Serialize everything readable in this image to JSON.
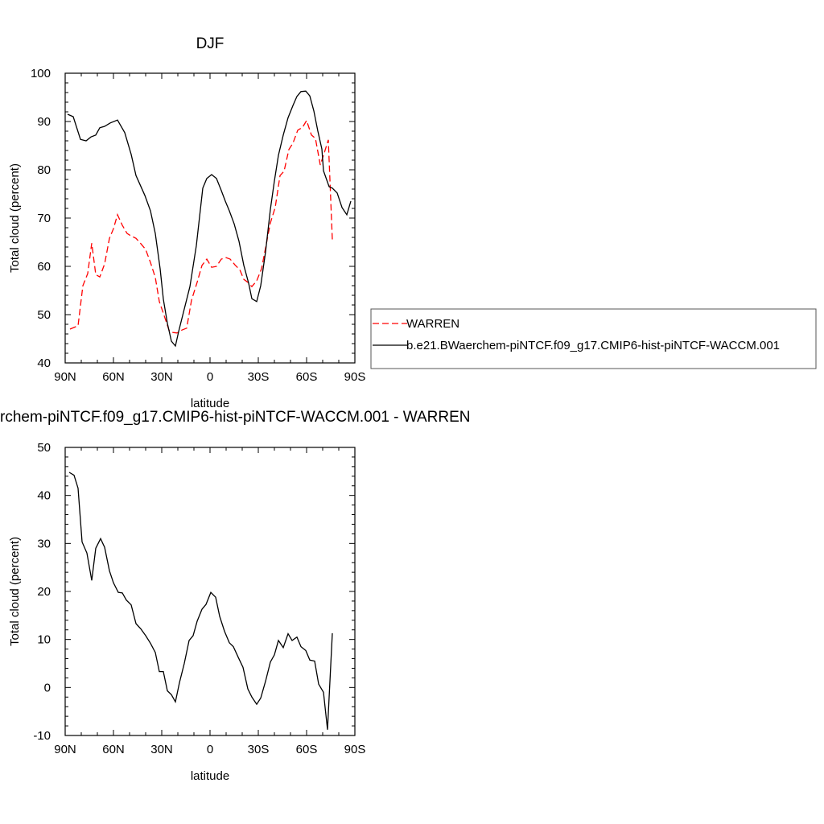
{
  "chart_data": [
    {
      "type": "line",
      "title": "DJF",
      "x_label": "latitude",
      "y_label": "Total cloud (percent)",
      "xlim": [
        90,
        -90
      ],
      "xticks": [
        {
          "value": 90,
          "label": "90N"
        },
        {
          "value": 60,
          "label": "60N"
        },
        {
          "value": 30,
          "label": "30N"
        },
        0,
        {
          "value": -30,
          "label": "30S"
        },
        {
          "value": -60,
          "label": "60S"
        },
        {
          "value": -90,
          "label": "90S"
        }
      ],
      "ylim": [
        40,
        100
      ],
      "yticks": [
        40,
        50,
        60,
        70,
        80,
        90,
        100
      ],
      "legend": "right",
      "series": [
        {
          "name": "WARREN",
          "color": "#ff0000",
          "dashed": true,
          "x": [
            87,
            82,
            79,
            76,
            73.5,
            71,
            68.5,
            65.5,
            62.5,
            60,
            57.5,
            54.5,
            51.5,
            49,
            46,
            43,
            40,
            37,
            34,
            31.5,
            28.5,
            25.5,
            23,
            20.5,
            17.5,
            14.5,
            11.5,
            8,
            5,
            2,
            -1,
            -4,
            -7,
            -10,
            -12.5,
            -15.5,
            -18.5,
            -21,
            -23.5,
            -26,
            -29,
            -32,
            -34.5,
            -37.5,
            -40.5,
            -43.5,
            -46,
            -49,
            -51.5,
            -54.5,
            -57.5,
            -60,
            -63,
            -65.5,
            -68.5,
            -71,
            -73.5,
            -76
          ],
          "values": [
            47,
            47.7,
            56,
            58.5,
            64.8,
            58.3,
            57.8,
            60.5,
            65.8,
            67.8,
            70.7,
            68.5,
            66.8,
            66.3,
            65.8,
            64.7,
            63.5,
            60.8,
            57.7,
            52.7,
            49.8,
            46.8,
            46.3,
            46.2,
            46.8,
            47.2,
            53,
            56.7,
            60.2,
            61.5,
            59.8,
            60,
            61.5,
            61.8,
            61.5,
            60.3,
            59.3,
            57.3,
            56.7,
            55.8,
            57,
            59.5,
            63.8,
            69,
            72.2,
            78.8,
            79.7,
            84.2,
            85.5,
            88.2,
            88.8,
            90.2,
            87.2,
            86.5,
            81,
            83.5,
            86.2,
            65.5
          ]
        },
        {
          "name": "b.e21.BWaerchem-piNTCF.f09_g17.CMIP6-hist-piNTCF-WACCM.001",
          "color": "#000000",
          "dashed": false,
          "x": [
            88.5,
            85,
            80.5,
            77,
            74,
            71,
            68.5,
            65.5,
            62,
            57.5,
            53,
            49,
            46,
            40.5,
            37,
            34,
            31,
            29,
            26.5,
            24,
            21.5,
            19.5,
            16.5,
            12.5,
            8.5,
            4.5,
            2,
            -1,
            -4,
            -7,
            -9.5,
            -12,
            -15,
            -18,
            -21,
            -24,
            -26,
            -29,
            -31.5,
            -34.5,
            -37.5,
            -40,
            -42.5,
            -45.5,
            -48.5,
            -51.5,
            -54,
            -56.5,
            -59.5,
            -62,
            -64.5,
            -67,
            -69.5,
            -70.5,
            -74,
            -76,
            -79,
            -82,
            -85,
            -87.5
          ],
          "values": [
            91.5,
            91,
            86.3,
            86,
            86.8,
            87.2,
            88.7,
            89,
            89.7,
            90.3,
            87.7,
            83.2,
            78.8,
            74.7,
            71.5,
            66.8,
            59.5,
            53.2,
            48.2,
            44.5,
            43.5,
            46.5,
            50.5,
            55.8,
            64.3,
            76.2,
            78.2,
            79,
            78.2,
            75.7,
            73.5,
            71.5,
            68.8,
            65.2,
            60.2,
            56.5,
            53.3,
            52.7,
            56,
            63,
            71.8,
            77.7,
            83,
            87.2,
            90.8,
            93.3,
            95.2,
            96.2,
            96.3,
            95.3,
            92.2,
            88,
            84.3,
            79.8,
            76.5,
            76.2,
            75.2,
            72.2,
            70.7,
            73.5
          ]
        }
      ]
    },
    {
      "type": "line",
      "title": "rchem-piNTCF.f09_g17.CMIP6-hist-piNTCF-WACCM.001 - WARREN",
      "x_label": "latitude",
      "y_label": "Total cloud (percent)",
      "xlim": [
        90,
        -90
      ],
      "xticks": [
        {
          "value": 90,
          "label": "90N"
        },
        {
          "value": 60,
          "label": "60N"
        },
        {
          "value": 30,
          "label": "30N"
        },
        0,
        {
          "value": -30,
          "label": "30S"
        },
        {
          "value": -60,
          "label": "60S"
        },
        {
          "value": -90,
          "label": "90S"
        }
      ],
      "ylim": [
        -10,
        50
      ],
      "yticks": [
        -10,
        0,
        10,
        20,
        30,
        40,
        50
      ],
      "series": [
        {
          "color": "#000000",
          "dashed": false,
          "x": [
            87.5,
            84.5,
            82,
            79.5,
            76.5,
            73.5,
            71,
            68,
            65.5,
            62.5,
            60,
            57,
            54.5,
            52,
            49,
            46,
            43,
            40,
            37,
            34,
            31.5,
            29,
            26.5,
            24,
            21.5,
            19,
            16,
            13,
            10.5,
            8,
            5,
            2.5,
            -0.5,
            -3.5,
            -6,
            -9,
            -12,
            -14.5,
            -17.5,
            -20.5,
            -23.5,
            -26,
            -29,
            -31.5,
            -34.5,
            -37.5,
            -40,
            -42.5,
            -45.5,
            -48.5,
            -51,
            -54,
            -56.5,
            -59.5,
            -62,
            -65,
            -67.5,
            -70.5,
            -73,
            -76
          ],
          "values": [
            44.8,
            44.2,
            41.5,
            30.3,
            28,
            22.3,
            29,
            31,
            29.2,
            24.3,
            21.8,
            19.8,
            19.7,
            18.2,
            17.2,
            13.3,
            12.2,
            10.8,
            9.2,
            7.3,
            3.3,
            3.3,
            -0.7,
            -1.5,
            -3,
            1,
            5,
            9.8,
            10.8,
            13.8,
            16.3,
            17.3,
            19.8,
            18.8,
            14.8,
            11.7,
            9.3,
            8.5,
            6.3,
            4.2,
            -0.3,
            -2,
            -3.5,
            -2.2,
            1.3,
            5.3,
            6.8,
            9.8,
            8.3,
            11.2,
            9.8,
            10.5,
            8.5,
            7.7,
            5.7,
            5.5,
            0.7,
            -1,
            -8.8,
            11.3
          ]
        }
      ]
    }
  ]
}
